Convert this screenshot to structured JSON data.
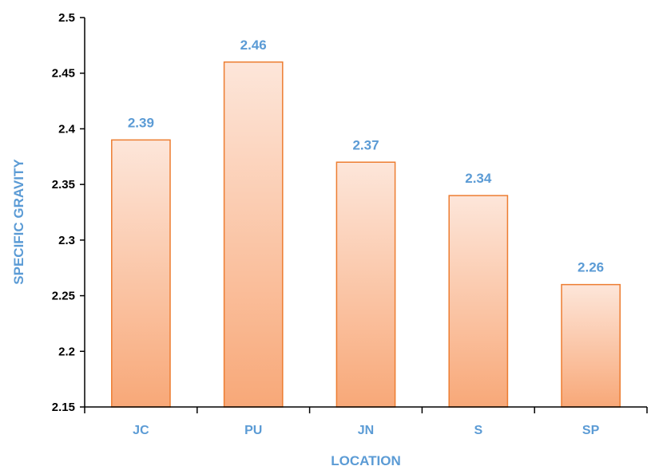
{
  "chart_data": {
    "type": "bar",
    "categories": [
      "JC",
      "PU",
      "JN",
      "S",
      "SP"
    ],
    "values": [
      2.39,
      2.46,
      2.37,
      2.34,
      2.26
    ],
    "data_labels": [
      "2.39",
      "2.46",
      "2.37",
      "2.34",
      "2.26"
    ],
    "xlabel": "LOCATION",
    "ylabel": "SPECIFIC GRAVITY",
    "ylim": [
      2.15,
      2.5
    ],
    "yticks": [
      2.15,
      2.2,
      2.25,
      2.3,
      2.35,
      2.4,
      2.45,
      2.5
    ],
    "ytick_labels": [
      "2.15",
      "2.2",
      "2.25",
      "2.3",
      "2.35",
      "2.4",
      "2.45",
      "2.5"
    ],
    "grid": false,
    "legend": "none",
    "colors": {
      "bar_top": "#fde6da",
      "bar_bottom": "#f8a878",
      "bar_stroke": "#ed7d31",
      "label": "#5b9bd5",
      "axis": "#000000"
    }
  }
}
